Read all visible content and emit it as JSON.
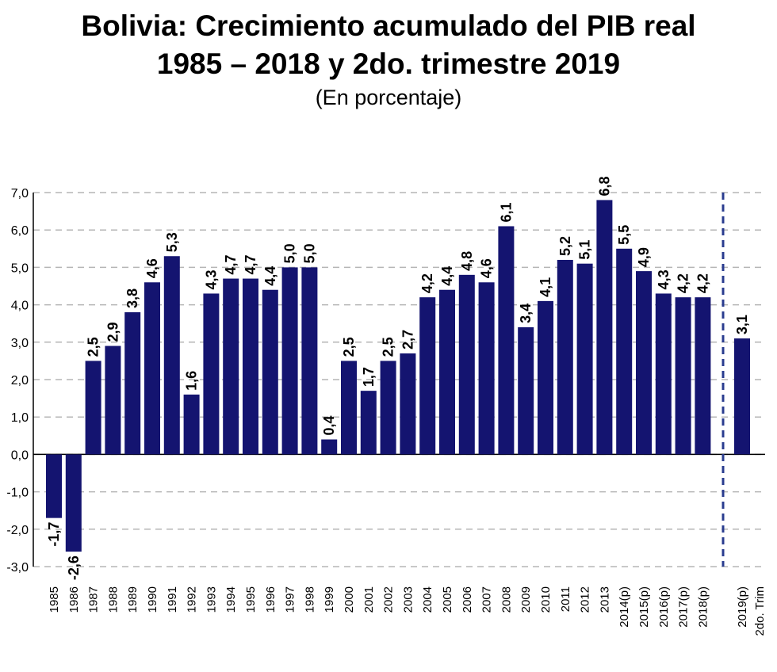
{
  "chart_data": {
    "type": "bar",
    "title": "Bolivia: Crecimiento acumulado del PIB real",
    "title_line2": "1985 – 2018 y 2do. trimestre 2019",
    "subtitle": "(En porcentaje)",
    "xlabel": "",
    "ylabel": "",
    "ylim": [
      -3.0,
      7.0
    ],
    "yticks": [
      "7,0",
      "6,0",
      "5,0",
      "4,0",
      "3,0",
      "2,0",
      "1,0",
      "0,0",
      "-1,0",
      "-2,0",
      "-3,0"
    ],
    "grid": true,
    "bar_color": "#141470",
    "separator_color": "#2a3c8f",
    "categories": [
      "1985",
      "1986",
      "1987",
      "1988",
      "1989",
      "1990",
      "1991",
      "1992",
      "1993",
      "1994",
      "1995",
      "1996",
      "1997",
      "1998",
      "1999",
      "2000",
      "2001",
      "2002",
      "2003",
      "2004",
      "2005",
      "2006",
      "2007",
      "2008",
      "2009",
      "2010",
      "2011",
      "2012",
      "2013",
      "2014(p)",
      "2015(p)",
      "2016(p)",
      "2017(p)",
      "2018(p)",
      "2019(p)"
    ],
    "values": [
      -1.7,
      -2.6,
      2.5,
      2.9,
      3.8,
      4.6,
      5.3,
      1.6,
      4.3,
      4.7,
      4.7,
      4.4,
      5.0,
      5.0,
      0.4,
      2.5,
      1.7,
      2.5,
      2.7,
      4.2,
      4.4,
      4.8,
      4.6,
      6.1,
      3.4,
      4.1,
      5.2,
      5.1,
      6.8,
      5.5,
      4.9,
      4.3,
      4.2,
      4.2,
      3.1
    ],
    "data_labels": [
      "-1,7",
      "-2,6",
      "2,5",
      "2,9",
      "3,8",
      "4,6",
      "5,3",
      "1,6",
      "4,3",
      "4,7",
      "4,7",
      "4,4",
      "5,0",
      "5,0",
      "0,4",
      "2,5",
      "1,7",
      "2,5",
      "2,7",
      "4,2",
      "4,4",
      "4,8",
      "4,6",
      "6,1",
      "3,4",
      "4,1",
      "5,2",
      "5,1",
      "6,8",
      "5,5",
      "4,9",
      "4,3",
      "4,2",
      "4,2",
      "3,1"
    ],
    "extra_label": "2do. Trim"
  }
}
